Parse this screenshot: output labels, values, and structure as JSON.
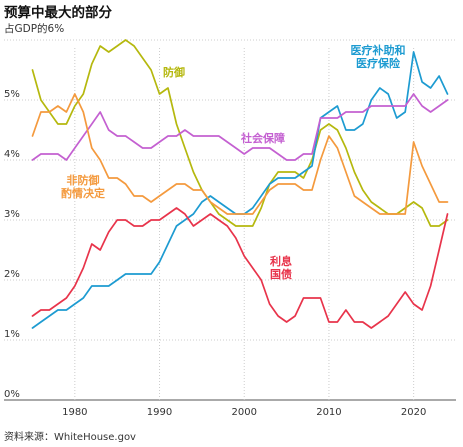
{
  "header": {
    "title": "预算中最大的部分",
    "subtitle": "占GDP的6%"
  },
  "footer": {
    "source": "资料来源：WhiteHouse.gov"
  },
  "colors": {
    "defense": "#b5b80e",
    "health": "#1d9bd1",
    "social_security": "#c460d1",
    "nondefense": "#f49a3e",
    "interest": "#e8344b"
  },
  "chart_data": {
    "type": "line",
    "x": [
      1975,
      1976,
      1977,
      1978,
      1979,
      1980,
      1981,
      1982,
      1983,
      1984,
      1985,
      1986,
      1987,
      1988,
      1989,
      1990,
      1991,
      1992,
      1993,
      1994,
      1995,
      1996,
      1997,
      1998,
      1999,
      2000,
      2001,
      2002,
      2003,
      2004,
      2005,
      2006,
      2007,
      2008,
      2009,
      2010,
      2011,
      2012,
      2013,
      2014,
      2015,
      2016,
      2017,
      2018,
      2019,
      2020,
      2021,
      2022,
      2023,
      2024
    ],
    "y_ticks": [
      {
        "value": 0,
        "label": "0%"
      },
      {
        "value": 1,
        "label": "1%"
      },
      {
        "value": 2,
        "label": "2%"
      },
      {
        "value": 3,
        "label": "3%"
      },
      {
        "value": 4,
        "label": "4%"
      },
      {
        "value": 5,
        "label": "5%"
      },
      {
        "value": 6,
        "label": ""
      }
    ],
    "x_ticks": [
      1980,
      1990,
      2000,
      2010,
      2020
    ],
    "xlim": [
      1974,
      2025
    ],
    "ylim": [
      0,
      6.2
    ],
    "grid": true,
    "series": [
      {
        "key": "defense",
        "label_lines": [
          "防御"
        ],
        "values": [
          5.5,
          5.0,
          4.8,
          4.6,
          4.6,
          4.9,
          5.1,
          5.6,
          5.9,
          5.8,
          5.9,
          6.0,
          5.9,
          5.7,
          5.5,
          5.1,
          5.2,
          4.6,
          4.2,
          3.8,
          3.5,
          3.3,
          3.1,
          3.0,
          2.9,
          2.9,
          2.9,
          3.2,
          3.6,
          3.8,
          3.8,
          3.8,
          3.7,
          4.0,
          4.5,
          4.6,
          4.5,
          4.2,
          3.8,
          3.5,
          3.3,
          3.2,
          3.1,
          3.1,
          3.2,
          3.3,
          3.2,
          2.9,
          2.9,
          3.0
        ]
      },
      {
        "key": "health",
        "label_lines": [
          "医疗补助和",
          "医疗保险"
        ],
        "values": [
          1.2,
          1.3,
          1.4,
          1.5,
          1.5,
          1.6,
          1.7,
          1.9,
          1.9,
          1.9,
          2.0,
          2.1,
          2.1,
          2.1,
          2.1,
          2.3,
          2.6,
          2.9,
          3.0,
          3.1,
          3.3,
          3.4,
          3.3,
          3.2,
          3.1,
          3.1,
          3.2,
          3.4,
          3.6,
          3.7,
          3.7,
          3.7,
          3.8,
          3.9,
          4.7,
          4.8,
          4.9,
          4.5,
          4.5,
          4.6,
          5.0,
          5.2,
          5.1,
          4.7,
          4.8,
          5.8,
          5.3,
          5.2,
          5.4,
          5.1
        ]
      },
      {
        "key": "social_security",
        "label_lines": [
          "社会保障"
        ],
        "values": [
          4.0,
          4.1,
          4.1,
          4.1,
          4.0,
          4.2,
          4.4,
          4.6,
          4.8,
          4.5,
          4.4,
          4.4,
          4.3,
          4.2,
          4.2,
          4.3,
          4.4,
          4.4,
          4.5,
          4.4,
          4.4,
          4.4,
          4.4,
          4.3,
          4.2,
          4.1,
          4.2,
          4.2,
          4.2,
          4.1,
          4.0,
          4.0,
          4.1,
          4.1,
          4.7,
          4.7,
          4.7,
          4.8,
          4.8,
          4.8,
          4.9,
          4.9,
          4.9,
          4.9,
          4.9,
          5.1,
          4.9,
          4.8,
          4.9,
          5.0
        ]
      },
      {
        "key": "nondefense",
        "label_lines": [
          "非防御",
          "酌情决定"
        ],
        "values": [
          4.4,
          4.8,
          4.8,
          4.9,
          4.8,
          5.1,
          4.8,
          4.2,
          4.0,
          3.7,
          3.7,
          3.6,
          3.4,
          3.4,
          3.3,
          3.4,
          3.5,
          3.6,
          3.6,
          3.5,
          3.5,
          3.3,
          3.2,
          3.1,
          3.1,
          3.1,
          3.1,
          3.3,
          3.5,
          3.6,
          3.6,
          3.6,
          3.5,
          3.5,
          4.0,
          4.4,
          4.2,
          3.8,
          3.4,
          3.3,
          3.2,
          3.1,
          3.1,
          3.1,
          3.1,
          4.3,
          3.9,
          3.6,
          3.3,
          3.3
        ]
      },
      {
        "key": "interest",
        "label_lines": [
          "利息",
          "国债"
        ],
        "values": [
          1.4,
          1.5,
          1.5,
          1.6,
          1.7,
          1.9,
          2.2,
          2.6,
          2.5,
          2.8,
          3.0,
          3.0,
          2.9,
          2.9,
          3.0,
          3.0,
          3.1,
          3.2,
          3.1,
          2.9,
          3.0,
          3.1,
          3.0,
          2.9,
          2.7,
          2.4,
          2.2,
          2.0,
          1.6,
          1.4,
          1.3,
          1.4,
          1.7,
          1.7,
          1.7,
          1.3,
          1.3,
          1.5,
          1.3,
          1.3,
          1.2,
          1.3,
          1.4,
          1.6,
          1.8,
          1.6,
          1.5,
          1.9,
          2.5,
          3.1
        ]
      }
    ]
  }
}
